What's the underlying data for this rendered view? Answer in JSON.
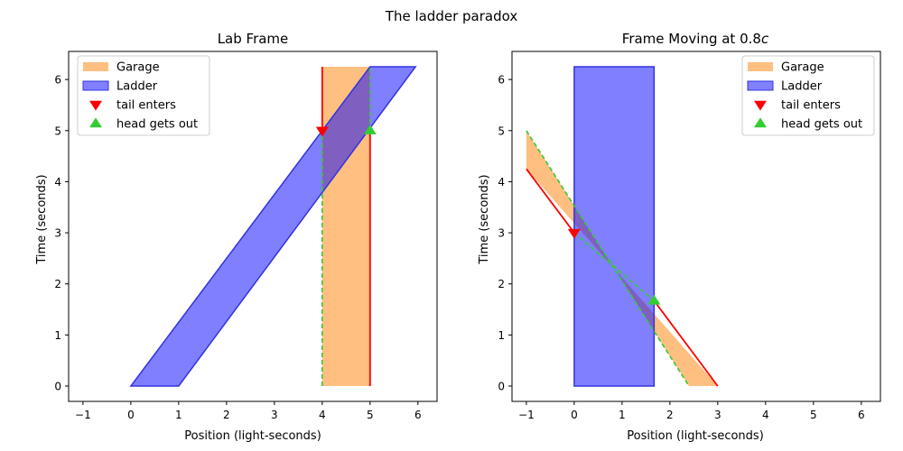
{
  "figure": {
    "suptitle": "The ladder paradox"
  },
  "colors": {
    "garage_fill": "#ffbf80",
    "ladder_fill": "#8080ff",
    "ladder_edge": "#3333dd",
    "red": "#ff0000",
    "green": "#33cc33"
  },
  "chart_data": [
    {
      "type": "area",
      "title": "Lab Frame",
      "xlabel": "Position (light-seconds)",
      "ylabel": "Time (seconds)",
      "xlim": [
        -1.3,
        6.4
      ],
      "ylim": [
        -0.3,
        6.55
      ],
      "xticks": [
        -1,
        0,
        1,
        2,
        3,
        4,
        5,
        6
      ],
      "yticks": [
        0,
        1,
        2,
        3,
        4,
        5,
        6
      ],
      "legend_position": "top-left",
      "legend": [
        "Garage",
        "Ladder",
        "tail enters",
        "head gets out"
      ],
      "garage": {
        "polygon": [
          [
            4,
            0
          ],
          [
            5,
            0
          ],
          [
            5,
            6.25
          ],
          [
            4,
            6.25
          ]
        ],
        "solid_edges": [
          [
            [
              4,
              5
            ],
            [
              4,
              6.25
            ]
          ],
          [
            [
              5,
              0
            ],
            [
              5,
              5
            ]
          ]
        ],
        "dashed_edges": [
          [
            [
              4,
              0
            ],
            [
              4,
              5
            ]
          ],
          [
            [
              5,
              5
            ],
            [
              5,
              6.25
            ]
          ]
        ]
      },
      "ladder": {
        "polygon": [
          [
            0,
            0
          ],
          [
            1,
            0
          ],
          [
            5.95,
            6.25
          ],
          [
            5,
            6.25
          ]
        ]
      },
      "markers": [
        {
          "label": "tail enters",
          "shape": "triangle-down",
          "x": 4,
          "y": 5
        },
        {
          "label": "head gets out",
          "shape": "triangle-up",
          "x": 5,
          "y": 5
        }
      ]
    },
    {
      "type": "area",
      "title_prefix": "Frame Moving at 0.8",
      "title_italic": "c",
      "xlabel": "Position (light-seconds)",
      "ylabel": "Time (seconds)",
      "xlim": [
        -1.3,
        6.4
      ],
      "ylim": [
        -0.3,
        6.55
      ],
      "xticks": [
        -1,
        0,
        1,
        2,
        3,
        4,
        5,
        6
      ],
      "yticks": [
        0,
        1,
        2,
        3,
        4,
        5,
        6
      ],
      "legend_position": "top-right",
      "legend": [
        "Garage",
        "Ladder",
        "tail enters",
        "head gets out"
      ],
      "garage": {
        "polygon": [
          [
            -1,
            4.25
          ],
          [
            -1,
            5
          ],
          [
            2.4,
            0
          ],
          [
            3,
            0
          ]
        ],
        "solid_edges": [
          [
            [
              -1,
              4.25
            ],
            [
              0,
              3
            ]
          ],
          [
            [
              1.67,
              1.67
            ],
            [
              3,
              0
            ]
          ]
        ],
        "dashed_edges": [
          [
            [
              0,
              3
            ],
            [
              1.67,
              1.67
            ]
          ],
          [
            [
              -1,
              5
            ],
            [
              2.4,
              0
            ]
          ]
        ]
      },
      "ladder": {
        "polygon": [
          [
            0,
            0
          ],
          [
            1.67,
            0
          ],
          [
            1.67,
            6.25
          ],
          [
            0,
            6.25
          ]
        ]
      },
      "markers": [
        {
          "label": "tail enters",
          "shape": "triangle-down",
          "x": 0,
          "y": 3
        },
        {
          "label": "head gets out",
          "shape": "triangle-up",
          "x": 1.67,
          "y": 1.67
        }
      ]
    }
  ]
}
